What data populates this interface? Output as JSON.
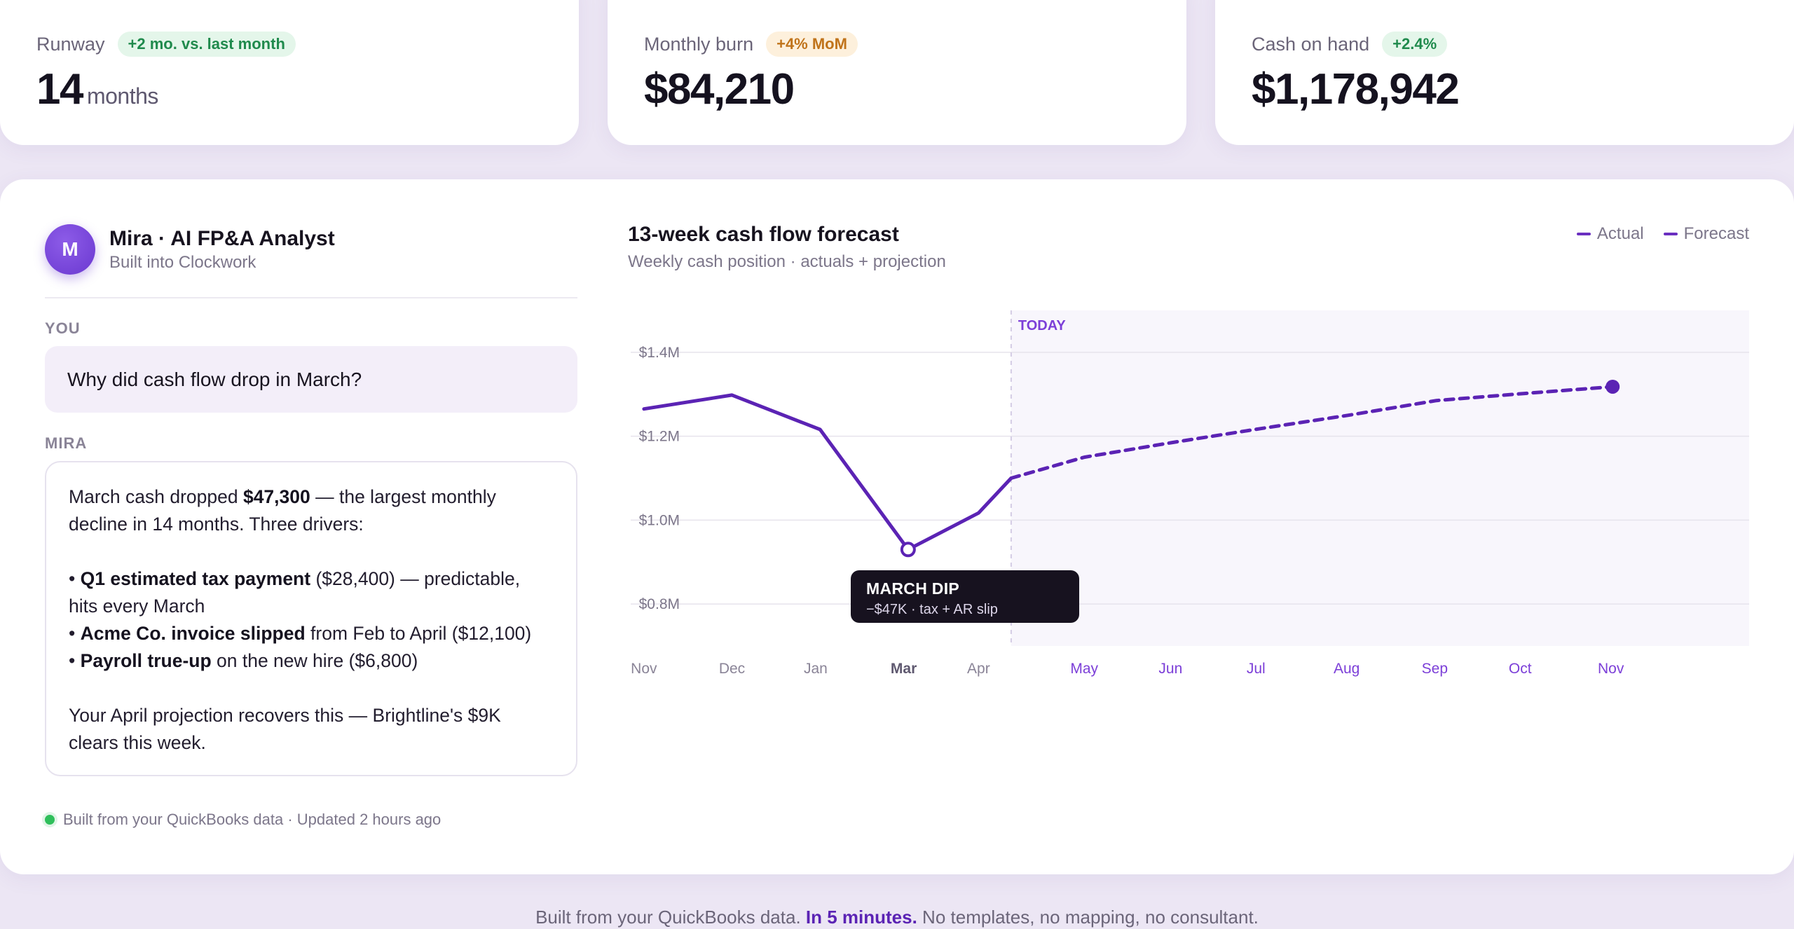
{
  "kpis": [
    {
      "label": "Runway",
      "badge": "+2 mo. vs. last month",
      "value": "14",
      "unit": "months"
    },
    {
      "label": "Monthly burn",
      "badge": "+4% MoM",
      "value": "$84,210"
    },
    {
      "label": "Cash on hand",
      "badge": "+2.4%",
      "value": "$1,178,942"
    }
  ],
  "assistant": {
    "avatar_initial": "M",
    "name": "Mira · AI FP&A Analyst",
    "subtitle": "Built into Clockwork",
    "user_role": "YOU",
    "user_message": "Why did cash flow drop in March?",
    "ai_role": "MIRA",
    "reply": {
      "intro_pre": "March cash dropped ",
      "intro_amount": "$47,300",
      "intro_post": " — the largest monthly decline in 14 months. Three drivers:",
      "drivers": [
        {
          "bold": "Q1 estimated tax payment",
          "rest": " ($28,400) — predictable, hits every March"
        },
        {
          "bold": "Acme Co. invoice slipped",
          "rest": " from Feb to April ($12,100)"
        },
        {
          "bold": "Payroll true-up",
          "rest": " on the new hire ($6,800)"
        }
      ],
      "closing": "Your April projection recovers this — Brightline's $9K clears this week."
    },
    "footnote": "Built from your QuickBooks data · Updated 2 hours ago"
  },
  "chart": {
    "title": "13-week cash flow forecast",
    "subtitle": "Weekly cash position · actuals + projection",
    "legend": {
      "actual": "Actual",
      "forecast": "Forecast"
    },
    "today_label": "TODAY",
    "tooltip": {
      "title": "MARCH DIP",
      "detail": "−$47K · tax + AR slip"
    },
    "colors": {
      "line": "#5b23b4",
      "forecast_months": "#7c3fd8",
      "grid": "#e6e3ec",
      "shade": "#f8f6fc"
    }
  },
  "chart_data": {
    "type": "line",
    "title": "13-week cash flow forecast",
    "y_tick_labels": [
      "$1.4M",
      "$1.2M",
      "$1.0M",
      "$0.8M"
    ],
    "y_ticks": [
      1.4,
      1.2,
      1.0,
      0.8
    ],
    "ylim": [
      0.7,
      1.5
    ],
    "x_range": [
      -0.15,
      12.55
    ],
    "categories": [
      "Nov",
      "Dec",
      "Jan",
      "Mar",
      "Apr",
      "May",
      "Jun",
      "Jul",
      "Aug",
      "Sep",
      "Oct",
      "Nov"
    ],
    "category_x": [
      0.0,
      1.0,
      1.95,
      2.95,
      3.8,
      5.0,
      5.98,
      6.95,
      7.98,
      8.98,
      9.95,
      10.98
    ],
    "highlight_category": "Mar",
    "today_x": 4.17,
    "series": [
      {
        "name": "Actual",
        "style": "solid",
        "x": [
          0.0,
          1.0,
          2.0,
          3.0,
          3.8,
          4.17
        ],
        "y": [
          1.265,
          1.298,
          1.216,
          0.93,
          1.017,
          1.1
        ]
      },
      {
        "name": "Forecast",
        "style": "dashed",
        "x": [
          4.17,
          5.0,
          6.0,
          7.0,
          8.0,
          9.0,
          10.0,
          11.0
        ],
        "y": [
          1.1,
          1.15,
          1.185,
          1.218,
          1.25,
          1.285,
          1.302,
          1.318
        ]
      }
    ],
    "annotations": [
      {
        "x": 3.0,
        "y": 0.93,
        "label": "MARCH DIP"
      }
    ]
  },
  "footer": {
    "pre": "Built from your QuickBooks data. ",
    "highlight": "In 5 minutes.",
    "post": " No templates, no mapping, no consultant."
  }
}
